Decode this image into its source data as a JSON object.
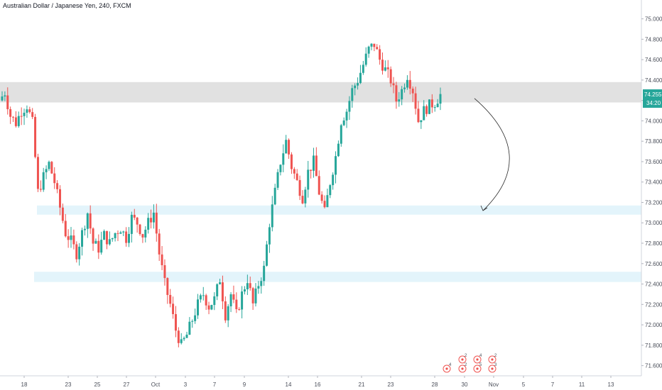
{
  "header": {
    "title": "Australian Dollar / Japanese Yen, 240, FXCM"
  },
  "price_tag": {
    "price": "74.255",
    "countdown": "34:20",
    "color": "#26a69a"
  },
  "colors": {
    "up": "#26a69a",
    "down": "#ef5350",
    "resistance_zone": "#e1e1e1",
    "support_zone": "#e3f4fb",
    "arrow": "#2b2b2b"
  },
  "events": [
    {
      "count": "4"
    },
    {
      "count": "2"
    },
    {
      "count": "4"
    },
    {
      "count": "2"
    },
    {
      "count": "2"
    },
    {
      "count": "5"
    },
    {
      "count": "3"
    }
  ],
  "chart_data": {
    "type": "candlestick",
    "title": "Australian Dollar / Japanese Yen, 240, FXCM",
    "ylim": [
      71.5,
      75.15
    ],
    "y_ticks": [
      "75.000",
      "74.800",
      "74.600",
      "74.400",
      "74.200",
      "74.000",
      "73.800",
      "73.600",
      "73.400",
      "73.200",
      "73.000",
      "72.800",
      "72.600",
      "72.400",
      "72.200",
      "72.000",
      "71.800",
      "71.600"
    ],
    "x_ticks": [
      "18",
      "23",
      "25",
      "27",
      "Oct",
      "3",
      "7",
      "9",
      "14",
      "16",
      "21",
      "23",
      "28",
      "30",
      "Nov",
      "5",
      "7",
      "11",
      "13"
    ],
    "zones": [
      {
        "type": "resistance",
        "from": 74.18,
        "to": 74.38
      },
      {
        "type": "support",
        "from": 73.08,
        "to": 73.17
      },
      {
        "type": "support",
        "from": 72.42,
        "to": 72.52
      }
    ],
    "close_path": [
      74.2,
      74.28,
      74.05,
      73.98,
      74.1,
      74.15,
      73.98,
      73.3,
      73.45,
      73.58,
      73.4,
      73.15,
      72.9,
      72.82,
      72.7,
      72.9,
      73.1,
      72.8,
      72.75,
      72.88,
      72.8,
      72.9,
      72.95,
      72.85,
      73.05,
      73.0,
      72.88,
      73.0,
      73.1,
      72.7,
      72.4,
      72.2,
      71.95,
      71.8,
      71.9,
      72.05,
      72.2,
      72.3,
      72.18,
      72.25,
      72.45,
      72.1,
      72.3,
      72.1,
      72.3,
      72.45,
      72.2,
      72.4,
      72.55,
      73.0,
      73.3,
      73.6,
      73.8,
      73.55,
      73.4,
      73.25,
      73.5,
      73.6,
      73.3,
      73.1,
      73.4,
      73.65,
      74.0,
      74.1,
      74.3,
      74.4,
      74.55,
      74.7,
      74.75,
      74.6,
      74.5,
      74.4,
      74.2,
      74.3,
      74.45,
      74.3,
      74.0,
      74.1,
      74.15,
      74.18,
      74.255
    ],
    "annotation": {
      "type": "curved-arrow",
      "from_price": 74.22,
      "to_price": 73.12
    }
  }
}
